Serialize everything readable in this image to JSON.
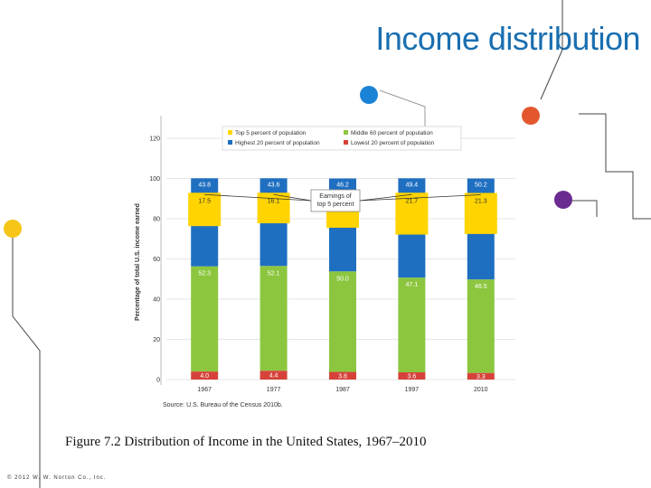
{
  "slide": {
    "title": "Income distribution",
    "source": "Source: U.S. Bureau of the Census 2010b.",
    "caption": "Figure 7.2 Distribution of Income in the United States, 1967–2010",
    "copyright": "© 2012 W. W. Norton Co., Inc."
  },
  "colors": {
    "top5": "#ffd400",
    "highest20": "#1f6fc1",
    "middle60": "#8cc63f",
    "lowest20": "#d6423a",
    "title": "#1a6fb0",
    "dot_blue": "#1b83d6",
    "dot_orange": "#e4572e",
    "dot_purple": "#6a2c91",
    "dot_yellow": "#f5c518"
  },
  "chart_data": {
    "type": "bar",
    "stacked": true,
    "categories": [
      "1967",
      "1977",
      "1987",
      "1997",
      "2010"
    ],
    "ylabel": "Percentage of total U.S. income earned",
    "xlabel": "",
    "ylim": [
      0,
      120
    ],
    "yticks": [
      0,
      20,
      40,
      60,
      80,
      100,
      120
    ],
    "grid": true,
    "legend_position": "top",
    "series": [
      {
        "name": "Lowest 20 percent of population",
        "key": "lowest20",
        "values": [
          4.0,
          4.4,
          3.8,
          3.6,
          3.3
        ],
        "labels": [
          "4.0",
          "4.4",
          "3.8",
          "3.6",
          "3.3"
        ]
      },
      {
        "name": "Middle 60 percent of population",
        "key": "middle60",
        "values": [
          52.3,
          52.1,
          50.0,
          47.1,
          46.5
        ],
        "labels": [
          "52.3",
          "52.1",
          "50.0",
          "47.1",
          "46.5"
        ]
      },
      {
        "name": "Highest 20 percent of population",
        "key": "highest20",
        "values": [
          43.8,
          43.6,
          46.2,
          49.4,
          50.2
        ],
        "labels": [
          "43.8",
          "43.6",
          "46.2",
          "49.4",
          "50.2"
        ]
      },
      {
        "name": "Top 5 percent of population",
        "key": "top5",
        "overlay": true,
        "values": [
          17.5,
          16.1,
          18.2,
          21.7,
          21.3
        ],
        "labels": [
          "17.5",
          "16.1",
          "18.2",
          "21.7",
          "21.3"
        ]
      }
    ],
    "legend_order": [
      "top5",
      "middle60",
      "highest20",
      "lowest20"
    ],
    "annotation": "Earnings of top 5 percent"
  }
}
